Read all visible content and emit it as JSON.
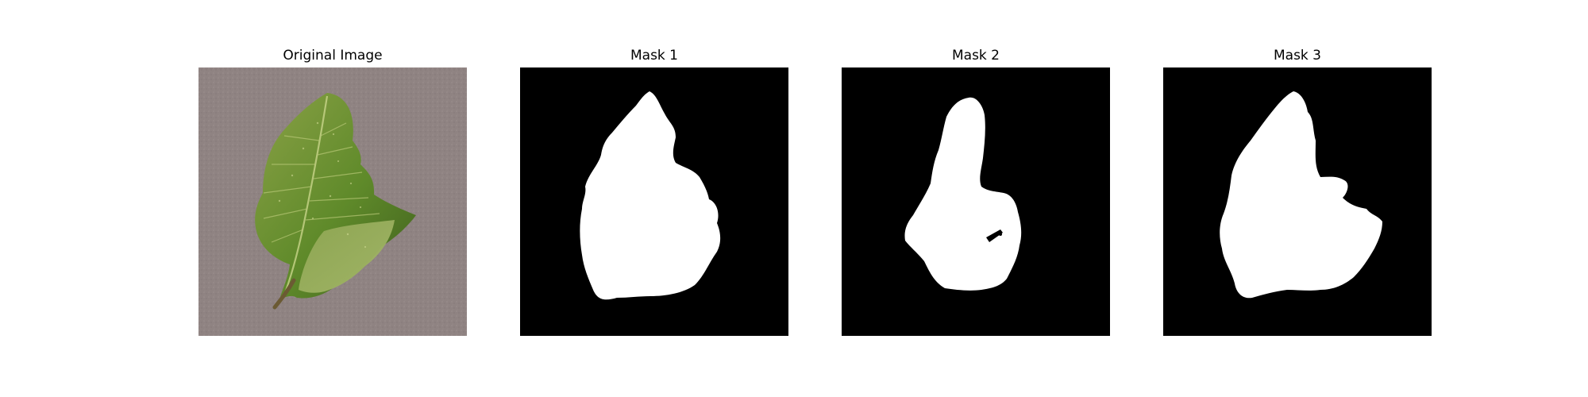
{
  "figure": {
    "panels": [
      {
        "title": "Original Image",
        "kind": "photo"
      },
      {
        "title": "Mask 1",
        "kind": "mask"
      },
      {
        "title": "Mask 2",
        "kind": "mask"
      },
      {
        "title": "Mask 3",
        "kind": "mask"
      }
    ]
  },
  "colors": {
    "background": "#ffffff",
    "mask_background": "#000000",
    "mask_foreground": "#ffffff",
    "photo_background": "#8f8382",
    "leaf_green": "#5f8a2a",
    "leaf_dark": "#3f5f1d",
    "leaf_light": "#a5b86a"
  }
}
